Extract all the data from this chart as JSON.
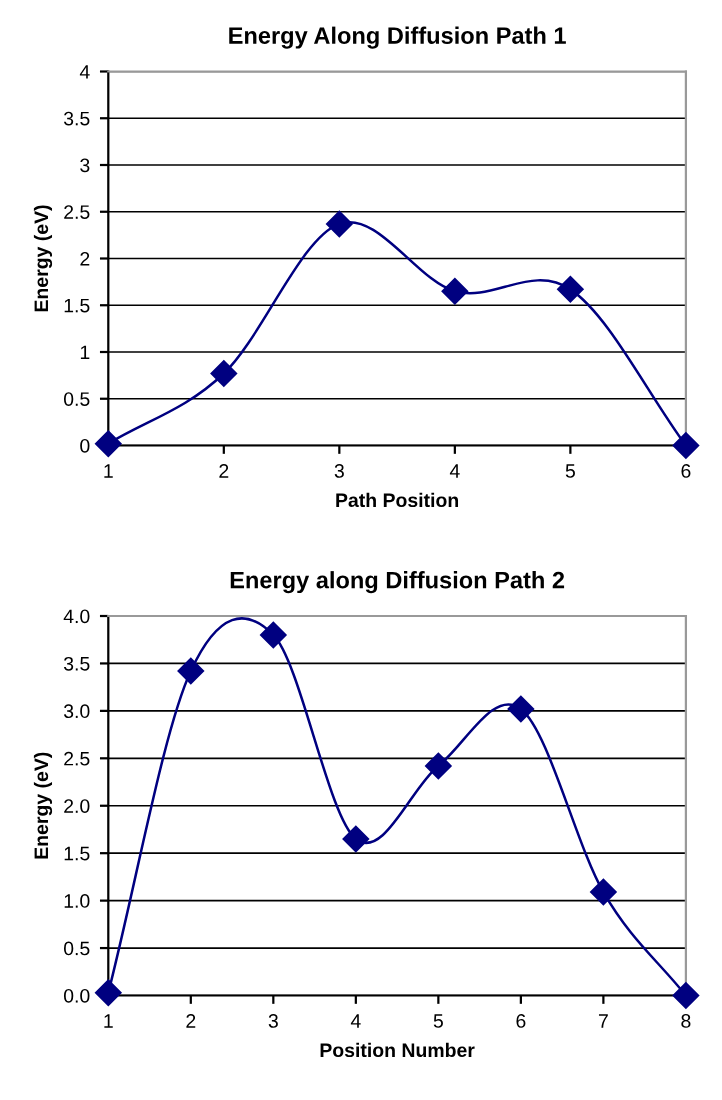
{
  "chart_data": [
    {
      "type": "line",
      "title": "Energy Along Diffusion Path 1",
      "xlabel": "Path Position",
      "ylabel": "Energy (eV)",
      "x": [
        1,
        2,
        3,
        4,
        5,
        6
      ],
      "series": [
        {
          "color": "#000080",
          "values": [
            0.02,
            0.77,
            2.37,
            1.65,
            1.67,
            0.0
          ]
        }
      ],
      "xlim": [
        1,
        6
      ],
      "xticks": [
        1,
        2,
        3,
        4,
        5,
        6
      ],
      "ylim": [
        0,
        4
      ],
      "yticks": [
        0,
        0.5,
        1,
        1.5,
        2,
        2.5,
        3,
        3.5,
        4
      ],
      "grid": "y",
      "marker": "diamond",
      "line_style": "solid"
    },
    {
      "type": "line",
      "title": "Energy along Diffusion Path 2",
      "xlabel": "Position Number",
      "ylabel": "Energy (eV)",
      "x": [
        1,
        2,
        3,
        4,
        5,
        6,
        7,
        8
      ],
      "series": [
        {
          "color": "#000080",
          "values": [
            0.03,
            3.42,
            3.8,
            1.65,
            2.42,
            3.02,
            1.09,
            0.0
          ]
        }
      ],
      "xlim": [
        1,
        8
      ],
      "xticks": [
        1,
        2,
        3,
        4,
        5,
        6,
        7,
        8
      ],
      "ylim": [
        0,
        4
      ],
      "yticks": [
        {
          "value": 0,
          "label": "0.0"
        },
        {
          "value": 0.5,
          "label": "0.5"
        },
        {
          "value": 1,
          "label": "1.0"
        },
        {
          "value": 1.5,
          "label": "1.5"
        },
        {
          "value": 2,
          "label": "2.0"
        },
        {
          "value": 2.5,
          "label": "2.5"
        },
        {
          "value": 3,
          "label": "3.0"
        },
        {
          "value": 3.5,
          "label": "3.5"
        },
        {
          "value": 4,
          "label": "4.0"
        }
      ],
      "grid": "y",
      "marker": "diamond",
      "line_style": "solid"
    }
  ]
}
